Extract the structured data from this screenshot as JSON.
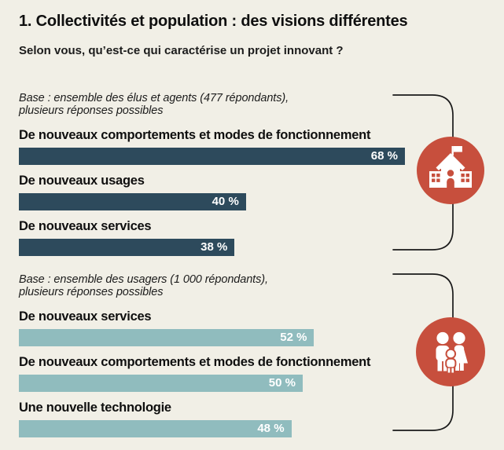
{
  "title": "1. Collectivités et population : des visions différentes",
  "subtitle": "Selon vous, qu’est-ce qui caractérise un projet innovant ?",
  "colors": {
    "background": "#f1efe6",
    "bar_dark": "#2d4a5c",
    "bar_teal": "#90bcbe",
    "icon_red": "#c74f3d",
    "text": "#121212",
    "bar_value_text": "#ffffff",
    "brace_line": "#1a1a1a"
  },
  "chart_data": [
    {
      "type": "bar",
      "orientation": "horizontal",
      "group": "élus et agents",
      "base_note_line1": "Base : ensemble des élus et agents (477 répondants),",
      "base_note_line2": "plusieurs réponses possibles",
      "categories": [
        "De nouveaux comportements et modes de fonctionnement",
        "De nouveaux usages",
        "De nouveaux services"
      ],
      "values": [
        68,
        40,
        38
      ],
      "value_labels": [
        "68 %",
        "40 %",
        "38 %"
      ],
      "bar_color": "#2d4a5c",
      "icon": "town-hall-icon",
      "xlim": [
        0,
        100
      ],
      "grid": false,
      "legend": false
    },
    {
      "type": "bar",
      "orientation": "horizontal",
      "group": "usagers",
      "base_note_line1": "Base : ensemble des usagers (1 000 répondants),",
      "base_note_line2": "plusieurs réponses possibles",
      "categories": [
        "De nouveaux services",
        "De nouveaux comportements et modes de fonctionnement",
        "Une nouvelle technologie"
      ],
      "values": [
        52,
        50,
        48
      ],
      "value_labels": [
        "52 %",
        "50 %",
        "48 %"
      ],
      "bar_color": "#90bcbe",
      "icon": "family-icon",
      "xlim": [
        0,
        100
      ],
      "grid": false,
      "legend": false
    }
  ]
}
